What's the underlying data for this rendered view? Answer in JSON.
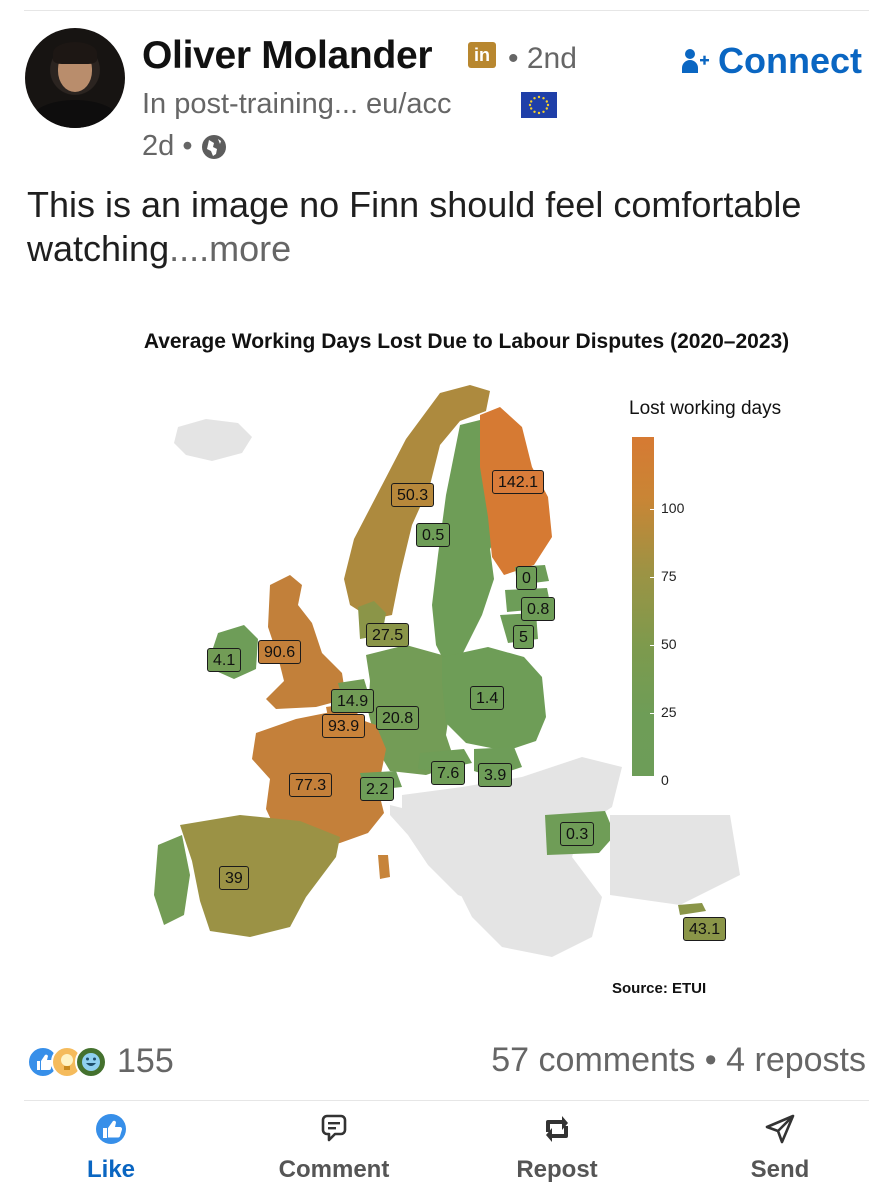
{
  "post": {
    "author": {
      "name": "Oliver Molander",
      "badge": "in",
      "degree": "• 2nd",
      "headline": "In post-training... eu/acc",
      "time": "2d •"
    },
    "connect_label": "Connect",
    "text": "This is an image no Finn should feel comfortable watching",
    "more_label": "....more"
  },
  "chart_data": {
    "type": "map",
    "title": "Average Working Days Lost Due to Labour Disputes (2020–2023)",
    "legend_title": "Lost working days",
    "legend_ticks": [
      "100",
      "75",
      "50",
      "25",
      "0"
    ],
    "color_scale": {
      "low": "#6d9d58",
      "mid": "#9c9344",
      "high": "#d67a33"
    },
    "source": "Source: ETUI",
    "values": [
      {
        "country": "Norway",
        "value": "50.3"
      },
      {
        "country": "Finland",
        "value": "142.1"
      },
      {
        "country": "Sweden",
        "value": "0.5"
      },
      {
        "country": "Estonia",
        "value": "0"
      },
      {
        "country": "Latvia",
        "value": "0.8"
      },
      {
        "country": "Lithuania",
        "value": "5"
      },
      {
        "country": "Denmark",
        "value": "27.5"
      },
      {
        "country": "Ireland",
        "value": "4.1"
      },
      {
        "country": "United Kingdom",
        "value": "90.6"
      },
      {
        "country": "Netherlands",
        "value": "14.9"
      },
      {
        "country": "Belgium",
        "value": "93.9"
      },
      {
        "country": "Germany",
        "value": "20.8"
      },
      {
        "country": "Poland",
        "value": "1.4"
      },
      {
        "country": "France",
        "value": "77.3"
      },
      {
        "country": "Switzerland",
        "value": "2.2"
      },
      {
        "country": "Austria",
        "value": "7.6"
      },
      {
        "country": "Hungary",
        "value": "3.9"
      },
      {
        "country": "Bulgaria",
        "value": "0.3"
      },
      {
        "country": "Spain",
        "value": "39"
      },
      {
        "country": "Cyprus",
        "value": "43.1"
      }
    ]
  },
  "social": {
    "reactions_count": "155",
    "comments_reposts": "57 comments • 4 reposts"
  },
  "actions": {
    "like": "Like",
    "comment": "Comment",
    "repost": "Repost",
    "send": "Send"
  },
  "colors": {
    "link_blue": "#0a66c2",
    "muted": "#666666"
  }
}
